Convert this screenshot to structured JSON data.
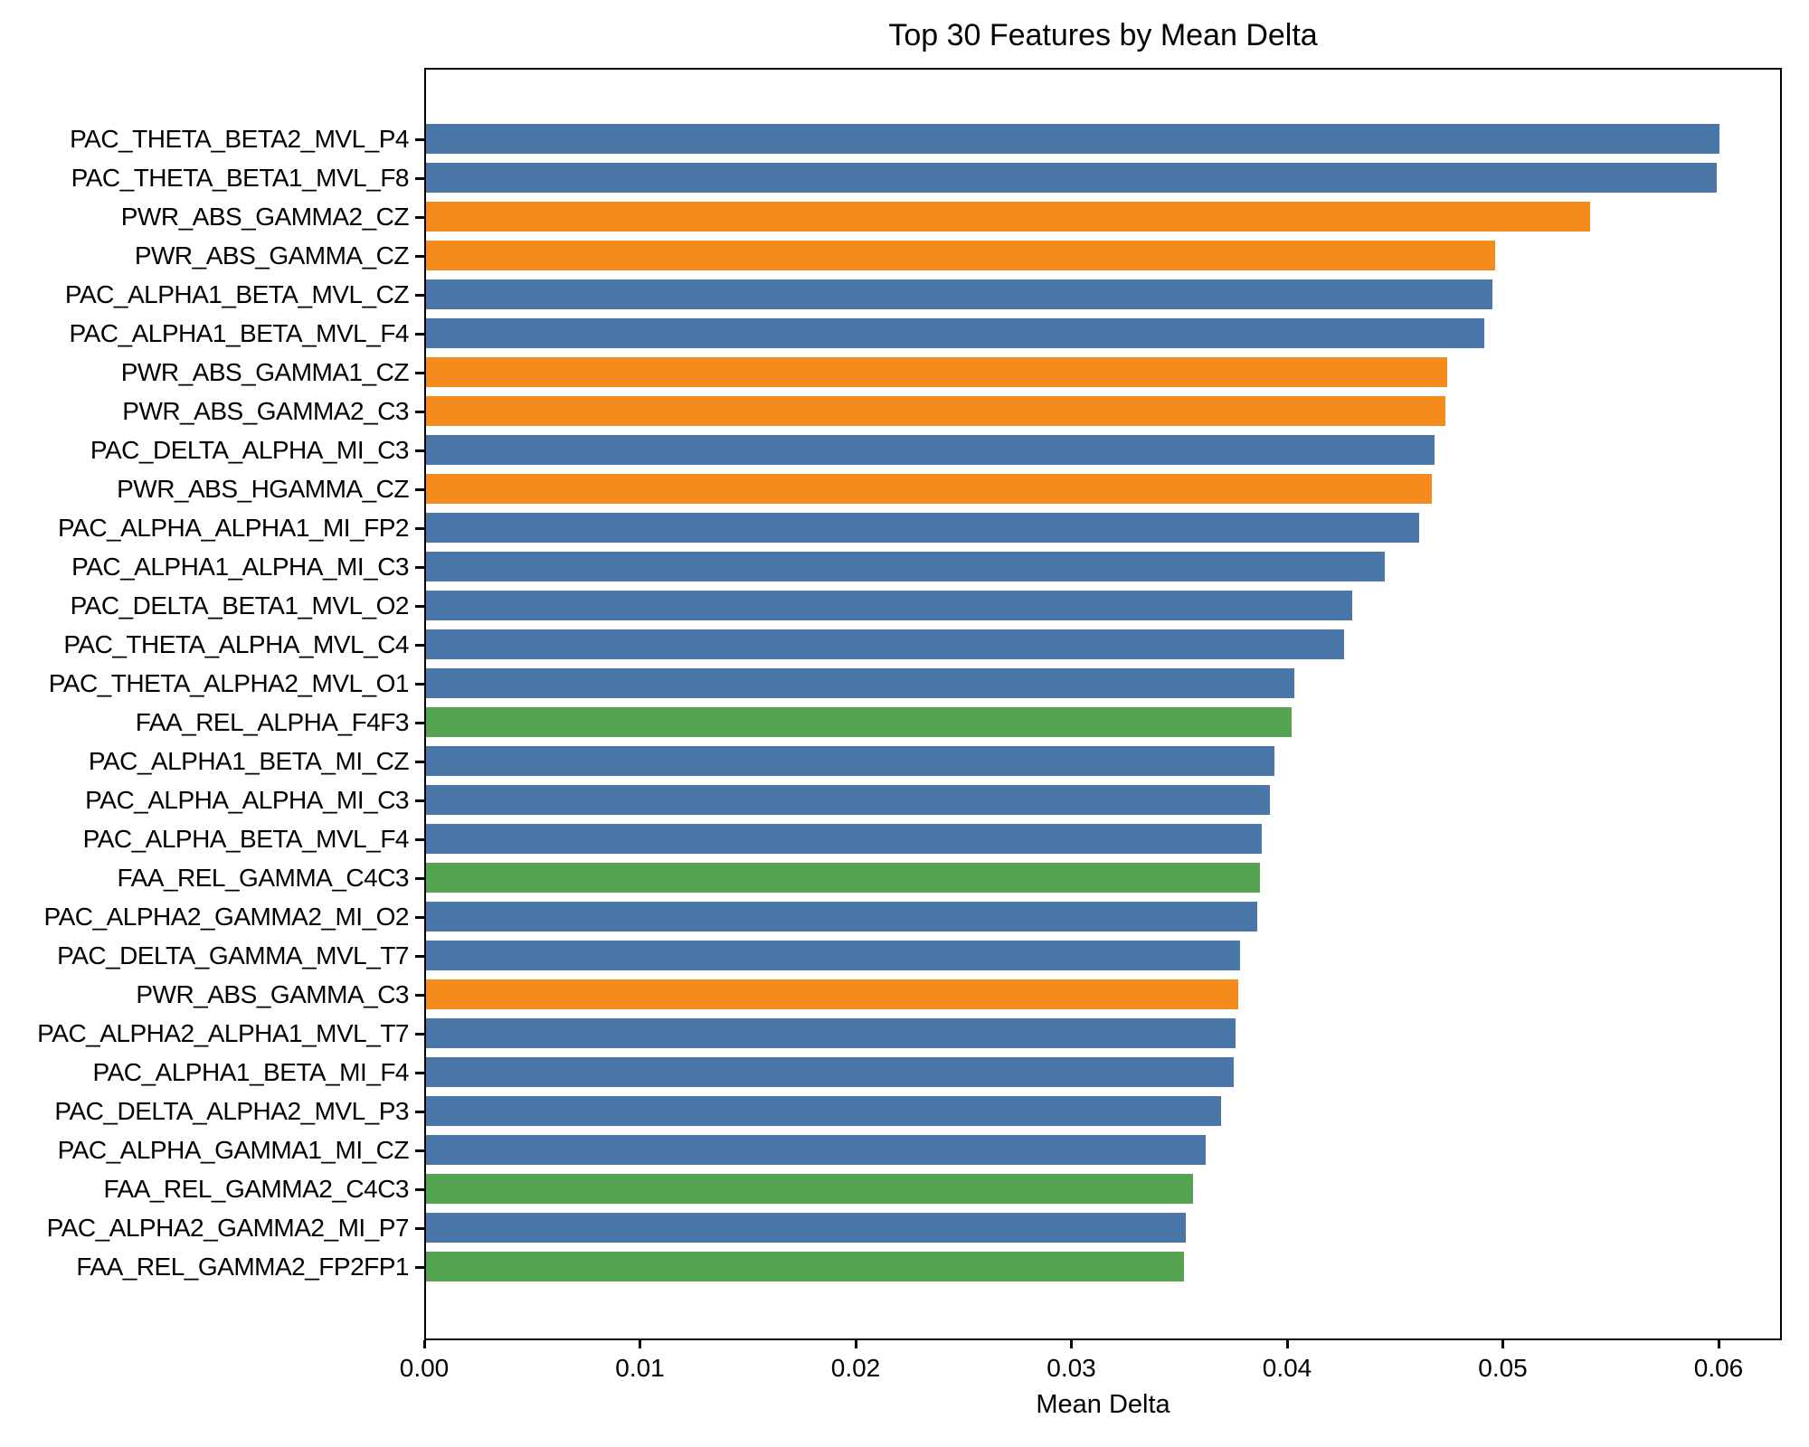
{
  "figure": {
    "background": "#ffffff",
    "spine_color": "#000000",
    "text_color": "#000000"
  },
  "chart_data": {
    "type": "bar",
    "orientation": "horizontal",
    "title": "Top 30 Features by Mean Delta",
    "xlabel": "Mean Delta",
    "ylabel": "",
    "grid": false,
    "legend": null,
    "xlim": [
      0,
      0.0629
    ],
    "xticks": [
      0.0,
      0.01,
      0.02,
      0.03,
      0.04,
      0.05,
      0.06
    ],
    "xtick_labels": [
      "0.00",
      "0.01",
      "0.02",
      "0.03",
      "0.04",
      "0.05",
      "0.06"
    ],
    "palette_by_prefix": {
      "PAC": "#4A77A8",
      "PWR": "#F68B1D",
      "FAA": "#56A351"
    },
    "categories": [
      "PAC_THETA_BETA2_MVL_P4",
      "PAC_THETA_BETA1_MVL_F8",
      "PWR_ABS_GAMMA2_CZ",
      "PWR_ABS_GAMMA_CZ",
      "PAC_ALPHA1_BETA_MVL_CZ",
      "PAC_ALPHA1_BETA_MVL_F4",
      "PWR_ABS_GAMMA1_CZ",
      "PWR_ABS_GAMMA2_C3",
      "PAC_DELTA_ALPHA_MI_C3",
      "PWR_ABS_HGAMMA_CZ",
      "PAC_ALPHA_ALPHA1_MI_FP2",
      "PAC_ALPHA1_ALPHA_MI_C3",
      "PAC_DELTA_BETA1_MVL_O2",
      "PAC_THETA_ALPHA_MVL_C4",
      "PAC_THETA_ALPHA2_MVL_O1",
      "FAA_REL_ALPHA_F4F3",
      "PAC_ALPHA1_BETA_MI_CZ",
      "PAC_ALPHA_ALPHA_MI_C3",
      "PAC_ALPHA_BETA_MVL_F4",
      "FAA_REL_GAMMA_C4C3",
      "PAC_ALPHA2_GAMMA2_MI_O2",
      "PAC_DELTA_GAMMA_MVL_T7",
      "PWR_ABS_GAMMA_C3",
      "PAC_ALPHA2_ALPHA1_MVL_T7",
      "PAC_ALPHA1_BETA_MI_F4",
      "PAC_DELTA_ALPHA2_MVL_P3",
      "PAC_ALPHA_GAMMA1_MI_CZ",
      "FAA_REL_GAMMA2_C4C3",
      "PAC_ALPHA2_GAMMA2_MI_P7",
      "FAA_REL_GAMMA2_FP2FP1"
    ],
    "values": [
      0.06,
      0.0599,
      0.054,
      0.0496,
      0.0495,
      0.0491,
      0.0474,
      0.0473,
      0.0468,
      0.0467,
      0.0461,
      0.0445,
      0.043,
      0.0426,
      0.0403,
      0.0402,
      0.0394,
      0.0392,
      0.0388,
      0.0387,
      0.0386,
      0.0378,
      0.0377,
      0.0376,
      0.0375,
      0.0369,
      0.0362,
      0.0356,
      0.0353,
      0.0352
    ]
  }
}
